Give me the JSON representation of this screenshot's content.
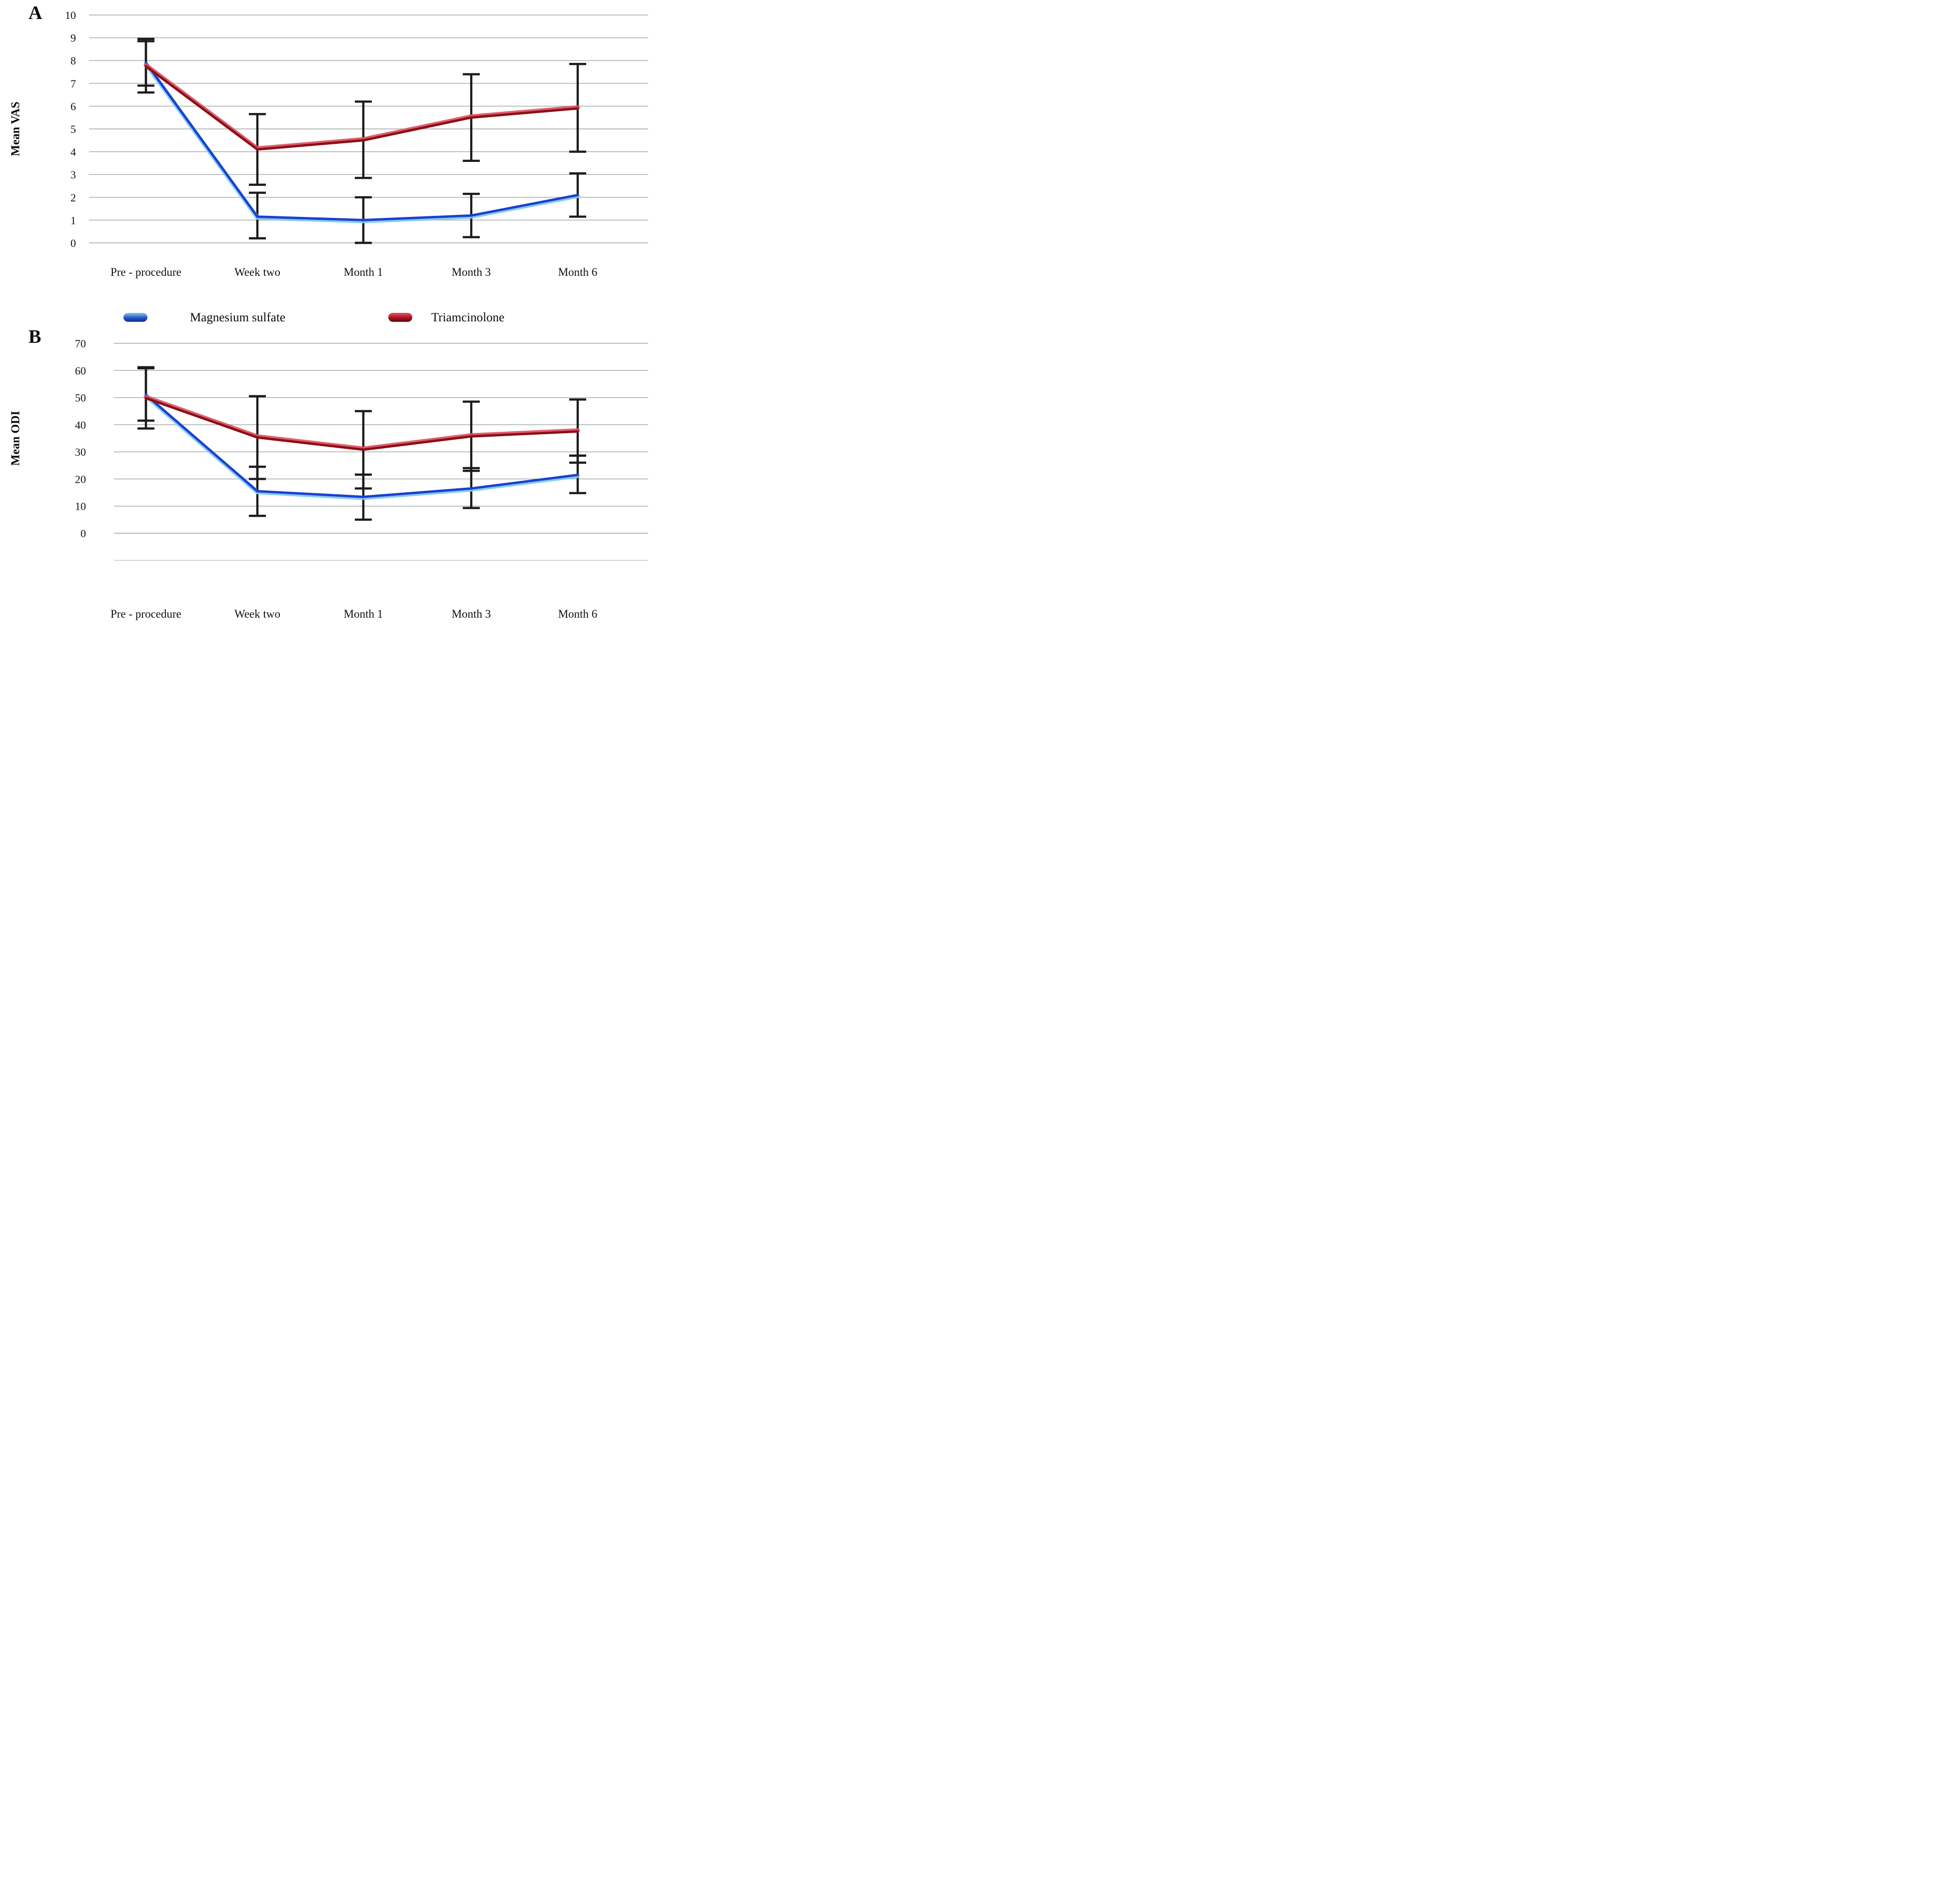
{
  "legend": {
    "items": [
      {
        "label": "Magnesium sulfate",
        "swatch_gradient": [
          "#8ec9ec",
          "#2356c9",
          "#14337f"
        ]
      },
      {
        "label": "Triamcinolone",
        "swatch_gradient": [
          "#d8596a",
          "#b01220",
          "#550a0e"
        ]
      }
    ]
  },
  "chart_data": [
    {
      "type": "line",
      "panel_label": "A",
      "ylabel": "Mean VAS",
      "ylim": [
        0,
        10
      ],
      "ytick_step": 1,
      "grid": true,
      "legend_position": "below-chart-A",
      "categories": [
        "Pre - procedure",
        "Week two",
        "Month 1",
        "Month 3",
        "Month 6"
      ],
      "series": [
        {
          "key": "magnesium-sulfate",
          "name": "Magnesium sulfate",
          "color_main": "#1b3fd0",
          "color_edge": "#7cc8ee",
          "values": [
            7.9,
            1.15,
            1.0,
            1.2,
            2.1
          ],
          "err_low": [
            6.9,
            0.2,
            0.0,
            0.25,
            1.15
          ],
          "err_high": [
            8.95,
            2.2,
            2.0,
            2.15,
            3.05
          ]
        },
        {
          "key": "triamcinolone",
          "name": "Triamcinolone",
          "color_main": "#8a1016",
          "color_edge": "#dd5063",
          "values": [
            7.75,
            4.1,
            4.5,
            5.5,
            5.9
          ],
          "err_low": [
            6.6,
            2.55,
            2.85,
            3.6,
            4.0
          ],
          "err_high": [
            8.85,
            5.65,
            6.2,
            7.4,
            7.85
          ]
        }
      ]
    },
    {
      "type": "line",
      "panel_label": "B",
      "ylabel": "Mean ODI",
      "ylim": [
        0,
        70
      ],
      "ytick_step": 10,
      "grid": true,
      "categories": [
        "Pre - procedure",
        "Week two",
        "Month 1",
        "Month 3",
        "Month 6"
      ],
      "series": [
        {
          "key": "magnesium-sulfate",
          "name": "Magnesium sulfate",
          "color_main": "#1b3fd0",
          "color_edge": "#7cc8ee",
          "values": [
            51,
            15.5,
            13.4,
            16.5,
            21.5
          ],
          "err_low": [
            41.5,
            6.4,
            5.0,
            9.3,
            14.8
          ],
          "err_high": [
            61.2,
            24.5,
            21.6,
            24.0,
            28.6
          ]
        },
        {
          "key": "triamcinolone",
          "name": "Triamcinolone",
          "color_main": "#8a1016",
          "color_edge": "#dd5063",
          "values": [
            49.8,
            35.3,
            30.8,
            35.7,
            37.5
          ],
          "err_low": [
            38.6,
            20.0,
            16.5,
            23.0,
            26.0
          ],
          "err_high": [
            60.8,
            50.5,
            45.0,
            48.5,
            49.3
          ]
        }
      ]
    }
  ]
}
